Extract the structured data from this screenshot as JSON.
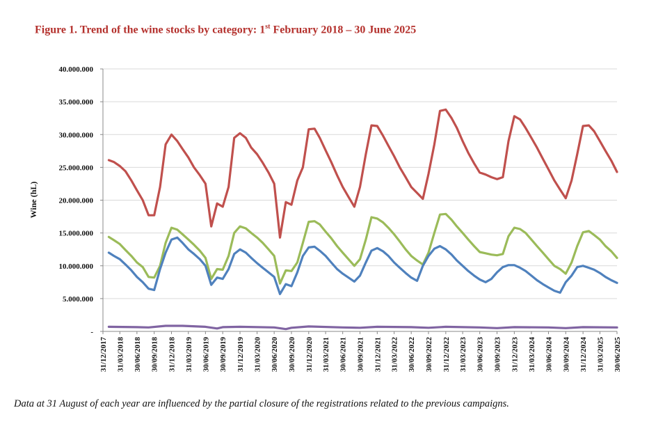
{
  "title": {
    "pre": "Figure 1. Trend of the wine stocks by category: 1",
    "sup": "st",
    "post": " February 2018 – 30 June 2025"
  },
  "note": "Data at 31 August of each year are influenced by the partial closure of the registrations related to the previous campaigns.",
  "chart_data": {
    "type": "line",
    "title": "Figure 1. Trend of the wine stocks by category: 1st February 2018 – 30 June 2025",
    "ylabel": "Wine (hL)",
    "xlabel": "",
    "ylim": [
      0,
      40000000
    ],
    "yticks": [
      0,
      5000000,
      10000000,
      15000000,
      20000000,
      25000000,
      30000000,
      35000000,
      40000000
    ],
    "ytick_labels": [
      "-",
      "5.000.000",
      "10.000.000",
      "15.000.000",
      "20.000.000",
      "25.000.000",
      "30.000.000",
      "35.000.000",
      "40.000.000"
    ],
    "xlim": [
      "2017-12-31",
      "2025-06-30"
    ],
    "x_tick_labels": [
      "31/12/2017",
      "31/03/2018",
      "30/06/2018",
      "30/09/2018",
      "31/12/2018",
      "31/03/2019",
      "30/06/2019",
      "30/09/2019",
      "31/12/2019",
      "31/03/2020",
      "30/06/2020",
      "30/09/2020",
      "31/12/2020",
      "31/03/2021",
      "30/06/2021",
      "30/09/2021",
      "31/12/2021",
      "31/03/2022",
      "30/06/2022",
      "30/09/2022",
      "31/12/2022",
      "31/03/2023",
      "30/06/2023",
      "30/09/2023",
      "31/12/2023",
      "31/03/2024",
      "30/06/2024",
      "30/09/2024",
      "31/12/2024",
      "31/03/2025",
      "30/06/2025"
    ],
    "x_tick_dates": [
      "2017-12-31",
      "2018-03-31",
      "2018-06-30",
      "2018-09-30",
      "2018-12-31",
      "2019-03-31",
      "2019-06-30",
      "2019-09-30",
      "2019-12-31",
      "2020-03-31",
      "2020-06-30",
      "2020-09-30",
      "2020-12-31",
      "2021-03-31",
      "2021-06-30",
      "2021-09-30",
      "2021-12-31",
      "2022-03-31",
      "2022-06-30",
      "2022-09-30",
      "2022-12-31",
      "2023-03-31",
      "2023-06-30",
      "2023-09-30",
      "2023-12-31",
      "2024-03-31",
      "2024-06-30",
      "2024-09-30",
      "2024-12-31",
      "2025-03-31",
      "2025-06-30"
    ],
    "grid": true,
    "legend": "none",
    "series": [
      {
        "color": "#c0504d",
        "x": [
          "2018-01-31",
          "2018-02-28",
          "2018-03-31",
          "2018-04-30",
          "2018-05-31",
          "2018-06-30",
          "2018-07-31",
          "2018-08-31",
          "2018-09-30",
          "2018-10-31",
          "2018-11-30",
          "2018-12-31",
          "2019-01-31",
          "2019-02-28",
          "2019-03-31",
          "2019-04-30",
          "2019-05-31",
          "2019-06-30",
          "2019-07-31",
          "2019-08-31",
          "2019-09-30",
          "2019-10-31",
          "2019-11-30",
          "2019-12-31",
          "2020-01-31",
          "2020-02-29",
          "2020-03-31",
          "2020-04-30",
          "2020-05-31",
          "2020-06-30",
          "2020-07-31",
          "2020-08-31",
          "2020-09-30",
          "2020-10-31",
          "2020-11-30",
          "2020-12-31",
          "2021-01-31",
          "2021-02-28",
          "2021-03-31",
          "2021-04-30",
          "2021-05-31",
          "2021-06-30",
          "2021-07-31",
          "2021-08-31",
          "2021-09-30",
          "2021-10-31",
          "2021-11-30",
          "2021-12-31",
          "2022-01-31",
          "2022-02-28",
          "2022-03-31",
          "2022-04-30",
          "2022-05-31",
          "2022-06-30",
          "2022-07-31",
          "2022-08-31",
          "2022-09-30",
          "2022-10-31",
          "2022-11-30",
          "2022-12-31",
          "2023-01-31",
          "2023-02-28",
          "2023-03-31",
          "2023-04-30",
          "2023-05-31",
          "2023-06-30",
          "2023-07-31",
          "2023-08-31",
          "2023-09-30",
          "2023-10-31",
          "2023-11-30",
          "2023-12-31",
          "2024-01-31",
          "2024-02-29",
          "2024-03-31",
          "2024-04-30",
          "2024-05-31",
          "2024-06-30",
          "2024-07-31",
          "2024-08-31",
          "2024-09-30",
          "2024-10-31",
          "2024-11-30",
          "2024-12-31",
          "2025-01-31",
          "2025-02-28",
          "2025-03-31",
          "2025-04-30",
          "2025-05-31",
          "2025-06-30"
        ],
        "values": [
          26100000,
          25800000,
          25200000,
          24400000,
          23000000,
          21500000,
          20000000,
          17700000,
          17700000,
          22000000,
          28500000,
          30000000,
          29000000,
          27800000,
          26500000,
          25000000,
          23800000,
          22500000,
          16000000,
          19500000,
          19000000,
          22000000,
          29500000,
          30200000,
          29500000,
          28000000,
          27000000,
          25700000,
          24200000,
          22500000,
          14300000,
          19700000,
          19300000,
          23000000,
          25000000,
          30800000,
          30900000,
          29500000,
          27600000,
          25800000,
          23800000,
          22000000,
          20500000,
          19000000,
          22000000,
          27000000,
          31400000,
          31300000,
          29800000,
          28300000,
          26700000,
          25000000,
          23500000,
          22000000,
          21100000,
          20200000,
          24000000,
          28500000,
          33600000,
          33800000,
          32500000,
          31000000,
          29000000,
          27200000,
          25600000,
          24200000,
          23900000,
          23500000,
          23200000,
          23500000,
          29000000,
          32800000,
          32300000,
          31000000,
          29500000,
          28000000,
          26300000,
          24700000,
          23000000,
          21600000,
          20300000,
          23000000,
          27000000,
          31300000,
          31400000,
          30500000,
          29000000,
          27500000,
          26000000,
          24300000
        ]
      },
      {
        "color": "#9bbb59",
        "x": [
          "2018-01-31",
          "2018-02-28",
          "2018-03-31",
          "2018-04-30",
          "2018-05-31",
          "2018-06-30",
          "2018-07-31",
          "2018-08-31",
          "2018-09-30",
          "2018-10-31",
          "2018-11-30",
          "2018-12-31",
          "2019-01-31",
          "2019-02-28",
          "2019-03-31",
          "2019-04-30",
          "2019-05-31",
          "2019-06-30",
          "2019-07-31",
          "2019-08-31",
          "2019-09-30",
          "2019-10-31",
          "2019-11-30",
          "2019-12-31",
          "2020-01-31",
          "2020-02-29",
          "2020-03-31",
          "2020-04-30",
          "2020-05-31",
          "2020-06-30",
          "2020-07-31",
          "2020-08-31",
          "2020-09-30",
          "2020-10-31",
          "2020-11-30",
          "2020-12-31",
          "2021-01-31",
          "2021-02-28",
          "2021-03-31",
          "2021-04-30",
          "2021-05-31",
          "2021-06-30",
          "2021-07-31",
          "2021-08-31",
          "2021-09-30",
          "2021-10-31",
          "2021-11-30",
          "2021-12-31",
          "2022-01-31",
          "2022-02-28",
          "2022-03-31",
          "2022-04-30",
          "2022-05-31",
          "2022-06-30",
          "2022-07-31",
          "2022-08-31",
          "2022-09-30",
          "2022-10-31",
          "2022-11-30",
          "2022-12-31",
          "2023-01-31",
          "2023-02-28",
          "2023-03-31",
          "2023-04-30",
          "2023-05-31",
          "2023-06-30",
          "2023-07-31",
          "2023-08-31",
          "2023-09-30",
          "2023-10-31",
          "2023-11-30",
          "2023-12-31",
          "2024-01-31",
          "2024-02-29",
          "2024-03-31",
          "2024-04-30",
          "2024-05-31",
          "2024-06-30",
          "2024-07-31",
          "2024-08-31",
          "2024-09-30",
          "2024-10-31",
          "2024-11-30",
          "2024-12-31",
          "2025-01-31",
          "2025-02-28",
          "2025-03-31",
          "2025-04-30",
          "2025-05-31",
          "2025-06-30"
        ],
        "values": [
          14400000,
          13900000,
          13300000,
          12400000,
          11500000,
          10500000,
          9800000,
          8300000,
          8200000,
          10000000,
          13500000,
          15800000,
          15500000,
          14800000,
          14000000,
          13200000,
          12300000,
          11200000,
          8000000,
          9500000,
          9400000,
          11500000,
          15000000,
          16000000,
          15700000,
          15000000,
          14300000,
          13500000,
          12500000,
          11500000,
          7300000,
          9300000,
          9200000,
          10500000,
          13500000,
          16700000,
          16800000,
          16300000,
          15200000,
          14200000,
          13000000,
          12000000,
          11000000,
          10000000,
          11000000,
          14000000,
          17400000,
          17200000,
          16600000,
          15800000,
          14800000,
          13700000,
          12500000,
          11500000,
          10800000,
          10200000,
          12000000,
          15000000,
          17800000,
          17900000,
          17000000,
          16000000,
          15000000,
          14000000,
          13000000,
          12100000,
          11900000,
          11700000,
          11600000,
          11800000,
          14500000,
          15800000,
          15600000,
          15000000,
          14000000,
          13000000,
          12000000,
          11000000,
          10000000,
          9500000,
          8800000,
          10500000,
          13000000,
          15100000,
          15300000,
          14700000,
          14000000,
          13000000,
          12200000,
          11200000
        ]
      },
      {
        "color": "#4f81bd",
        "x": [
          "2018-01-31",
          "2018-02-28",
          "2018-03-31",
          "2018-04-30",
          "2018-05-31",
          "2018-06-30",
          "2018-07-31",
          "2018-08-31",
          "2018-09-30",
          "2018-10-31",
          "2018-11-30",
          "2018-12-31",
          "2019-01-31",
          "2019-02-28",
          "2019-03-31",
          "2019-04-30",
          "2019-05-31",
          "2019-06-30",
          "2019-07-31",
          "2019-08-31",
          "2019-09-30",
          "2019-10-31",
          "2019-11-30",
          "2019-12-31",
          "2020-01-31",
          "2020-02-29",
          "2020-03-31",
          "2020-04-30",
          "2020-05-31",
          "2020-06-30",
          "2020-07-31",
          "2020-08-31",
          "2020-09-30",
          "2020-10-31",
          "2020-11-30",
          "2020-12-31",
          "2021-01-31",
          "2021-02-28",
          "2021-03-31",
          "2021-04-30",
          "2021-05-31",
          "2021-06-30",
          "2021-07-31",
          "2021-08-31",
          "2021-09-30",
          "2021-10-31",
          "2021-11-30",
          "2021-12-31",
          "2022-01-31",
          "2022-02-28",
          "2022-03-31",
          "2022-04-30",
          "2022-05-31",
          "2022-06-30",
          "2022-07-31",
          "2022-08-31",
          "2022-09-30",
          "2022-10-31",
          "2022-11-30",
          "2022-12-31",
          "2023-01-31",
          "2023-02-28",
          "2023-03-31",
          "2023-04-30",
          "2023-05-31",
          "2023-06-30",
          "2023-07-31",
          "2023-08-31",
          "2023-09-30",
          "2023-10-31",
          "2023-11-30",
          "2023-12-31",
          "2024-01-31",
          "2024-02-29",
          "2024-03-31",
          "2024-04-30",
          "2024-05-31",
          "2024-06-30",
          "2024-07-31",
          "2024-08-31",
          "2024-09-30",
          "2024-10-31",
          "2024-11-30",
          "2024-12-31",
          "2025-01-31",
          "2025-02-28",
          "2025-03-31",
          "2025-04-30",
          "2025-05-31",
          "2025-06-30"
        ],
        "values": [
          12000000,
          11500000,
          11000000,
          10200000,
          9300000,
          8300000,
          7500000,
          6500000,
          6300000,
          9500000,
          12000000,
          14000000,
          14300000,
          13500000,
          12500000,
          11800000,
          11000000,
          10000000,
          7100000,
          8200000,
          8000000,
          9500000,
          11800000,
          12500000,
          12000000,
          11200000,
          10400000,
          9700000,
          9000000,
          8300000,
          5700000,
          7200000,
          6900000,
          9000000,
          11500000,
          12800000,
          12900000,
          12300000,
          11500000,
          10500000,
          9500000,
          8800000,
          8200000,
          7600000,
          8500000,
          10500000,
          12300000,
          12700000,
          12200000,
          11500000,
          10500000,
          9700000,
          8900000,
          8200000,
          7700000,
          10000000,
          11500000,
          12600000,
          13000000,
          12500000,
          11700000,
          10800000,
          10000000,
          9200000,
          8500000,
          7900000,
          7500000,
          8000000,
          9000000,
          9800000,
          10100000,
          10100000,
          9700000,
          9200000,
          8500000,
          7800000,
          7200000,
          6700000,
          6200000,
          5900000,
          7500000,
          8500000,
          9800000,
          10000000,
          9700000,
          9400000,
          8900000,
          8300000,
          7800000,
          7400000
        ]
      },
      {
        "color": "#8064a2",
        "x": [
          "2018-01-31",
          "2018-06-30",
          "2018-08-31",
          "2018-11-30",
          "2019-02-28",
          "2019-06-30",
          "2019-08-31",
          "2019-09-30",
          "2019-12-31",
          "2020-06-30",
          "2020-08-31",
          "2020-09-30",
          "2020-12-31",
          "2021-06-30",
          "2021-09-30",
          "2021-12-31",
          "2022-06-30",
          "2022-09-30",
          "2022-12-31",
          "2023-06-30",
          "2023-09-30",
          "2023-12-31",
          "2024-06-30",
          "2024-09-30",
          "2024-12-31",
          "2025-06-30"
        ],
        "values": [
          700000,
          650000,
          600000,
          850000,
          850000,
          700000,
          450000,
          650000,
          700000,
          600000,
          350000,
          550000,
          750000,
          600000,
          550000,
          700000,
          650000,
          550000,
          700000,
          600000,
          500000,
          650000,
          600000,
          500000,
          650000,
          600000
        ]
      }
    ]
  }
}
